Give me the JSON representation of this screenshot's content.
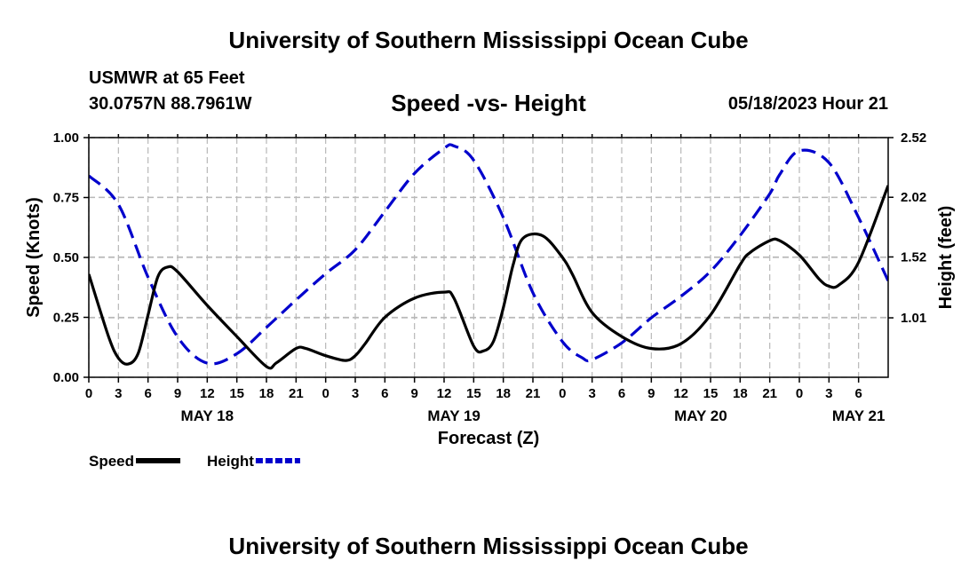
{
  "header": {
    "title": "University of Southern Mississippi Ocean Cube",
    "station": "USMWR at 65 Feet",
    "coords": "30.0757N  88.7961W",
    "timestamp": "05/18/2023 Hour 21",
    "footer_title": "University of Southern Mississippi Ocean Cube"
  },
  "chart_data": {
    "type": "line",
    "title": "Speed -vs- Height",
    "xlabel": "Forecast (Z)",
    "ylabel_left": "Speed (Knots)",
    "ylabel_right": "Height (feet)",
    "x_range_hours": [
      0,
      81
    ],
    "y_left_range": [
      0,
      1
    ],
    "y_right_range": [
      0.512,
      2.52
    ],
    "x_tick_labels": [
      "0",
      "3",
      "6",
      "9",
      "12",
      "15",
      "18",
      "21",
      "0",
      "3",
      "6",
      "9",
      "12",
      "15",
      "18",
      "21",
      "0",
      "3",
      "6",
      "9",
      "12",
      "15",
      "18",
      "21",
      "0",
      "3",
      "6"
    ],
    "y_left_ticks": [
      {
        "value": 0,
        "label": "0.00"
      },
      {
        "value": 0.25,
        "label": "0.25"
      },
      {
        "value": 0.5,
        "label": "0.50"
      },
      {
        "value": 0.75,
        "label": "0.75"
      },
      {
        "value": 1.0,
        "label": "1.00"
      }
    ],
    "y_right_ticks": [
      {
        "value": 1.01,
        "label": "1.01"
      },
      {
        "value": 1.52,
        "label": "1.52"
      },
      {
        "value": 2.02,
        "label": "2.02"
      },
      {
        "value": 2.52,
        "label": "2.52"
      }
    ],
    "date_labels": [
      {
        "hour": 12,
        "label": "MAY 18"
      },
      {
        "hour": 37,
        "label": "MAY 19"
      },
      {
        "hour": 62,
        "label": "MAY 20"
      },
      {
        "hour": 78,
        "label": "MAY 21"
      }
    ],
    "grid": true,
    "legend_position": "bottom-left",
    "series": [
      {
        "name": "Speed",
        "axis": "left",
        "color": "#000000",
        "style": "solid",
        "x": [
          0,
          2,
          3,
          4,
          5,
          6,
          7,
          8,
          9,
          12,
          15,
          18,
          19,
          21,
          22,
          24,
          26,
          27,
          28,
          30,
          33,
          36,
          37,
          39,
          40,
          41,
          42,
          43,
          44,
          46,
          48,
          49,
          51,
          54,
          57,
          60,
          63,
          66,
          67,
          69,
          70,
          72,
          74,
          75,
          76,
          78,
          81
        ],
        "y": [
          0.43,
          0.17,
          0.08,
          0.055,
          0.1,
          0.26,
          0.42,
          0.46,
          0.44,
          0.3,
          0.17,
          0.045,
          0.06,
          0.12,
          0.12,
          0.09,
          0.07,
          0.09,
          0.14,
          0.25,
          0.33,
          0.355,
          0.33,
          0.13,
          0.11,
          0.15,
          0.29,
          0.47,
          0.58,
          0.59,
          0.5,
          0.43,
          0.27,
          0.17,
          0.12,
          0.14,
          0.26,
          0.47,
          0.52,
          0.57,
          0.57,
          0.51,
          0.41,
          0.38,
          0.385,
          0.48,
          0.8
        ]
      },
      {
        "name": "Height",
        "axis": "right",
        "color": "#0000cc",
        "style": "dashed",
        "x": [
          0,
          3,
          6,
          9,
          12,
          15,
          18,
          21,
          24,
          27,
          30,
          33,
          36,
          37,
          39,
          42,
          45,
          48,
          50,
          51,
          54,
          57,
          60,
          63,
          66,
          69,
          70,
          72,
          75,
          78,
          81
        ],
        "y": [
          2.2,
          1.96,
          1.35,
          0.85,
          0.63,
          0.71,
          0.93,
          1.16,
          1.38,
          1.58,
          1.9,
          2.22,
          2.43,
          2.45,
          2.33,
          1.85,
          1.22,
          0.81,
          0.675,
          0.66,
          0.8,
          1.01,
          1.19,
          1.4,
          1.7,
          2.05,
          2.21,
          2.41,
          2.31,
          1.85,
          1.32
        ]
      }
    ]
  }
}
